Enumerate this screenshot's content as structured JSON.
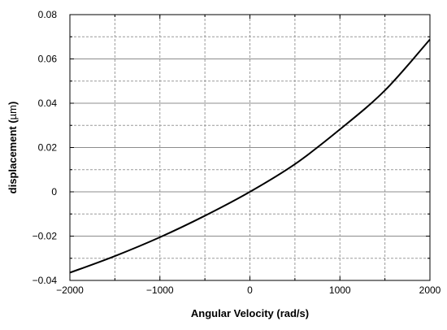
{
  "chart_data": {
    "type": "line",
    "title": "",
    "xlabel": "Angular Velocity (rad/s)",
    "ylabel_prefix": "displacement (",
    "ylabel_unit": "µm",
    "ylabel_suffix": ")",
    "xlim": [
      -2000,
      2000
    ],
    "ylim": [
      -0.04,
      0.08
    ],
    "x_ticks": [
      -2000,
      -1000,
      0,
      1000,
      2000
    ],
    "x_tick_labels": [
      "−2000",
      "−1000",
      "0",
      "1000",
      "2000"
    ],
    "x_minor_ticks": [
      -1500,
      -500,
      500,
      1500
    ],
    "y_ticks": [
      -0.04,
      -0.02,
      0,
      0.02,
      0.04,
      0.06,
      0.08
    ],
    "y_tick_labels": [
      "−0.04",
      "−0.02",
      "0",
      "0.02",
      "0.04",
      "0.06",
      "0.08"
    ],
    "y_minor_ticks": [
      -0.03,
      -0.01,
      0.01,
      0.03,
      0.05,
      0.07
    ],
    "grid": true,
    "line_color": "#000000",
    "series": [
      {
        "x": [
          -2000,
          -1500,
          -1000,
          -500,
          0,
          500,
          1000,
          1500,
          2000
        ],
        "values": [
          -0.0365,
          -0.029,
          -0.0205,
          -0.0108,
          0.0,
          0.0125,
          0.0282,
          0.0458,
          0.0688
        ]
      }
    ]
  }
}
